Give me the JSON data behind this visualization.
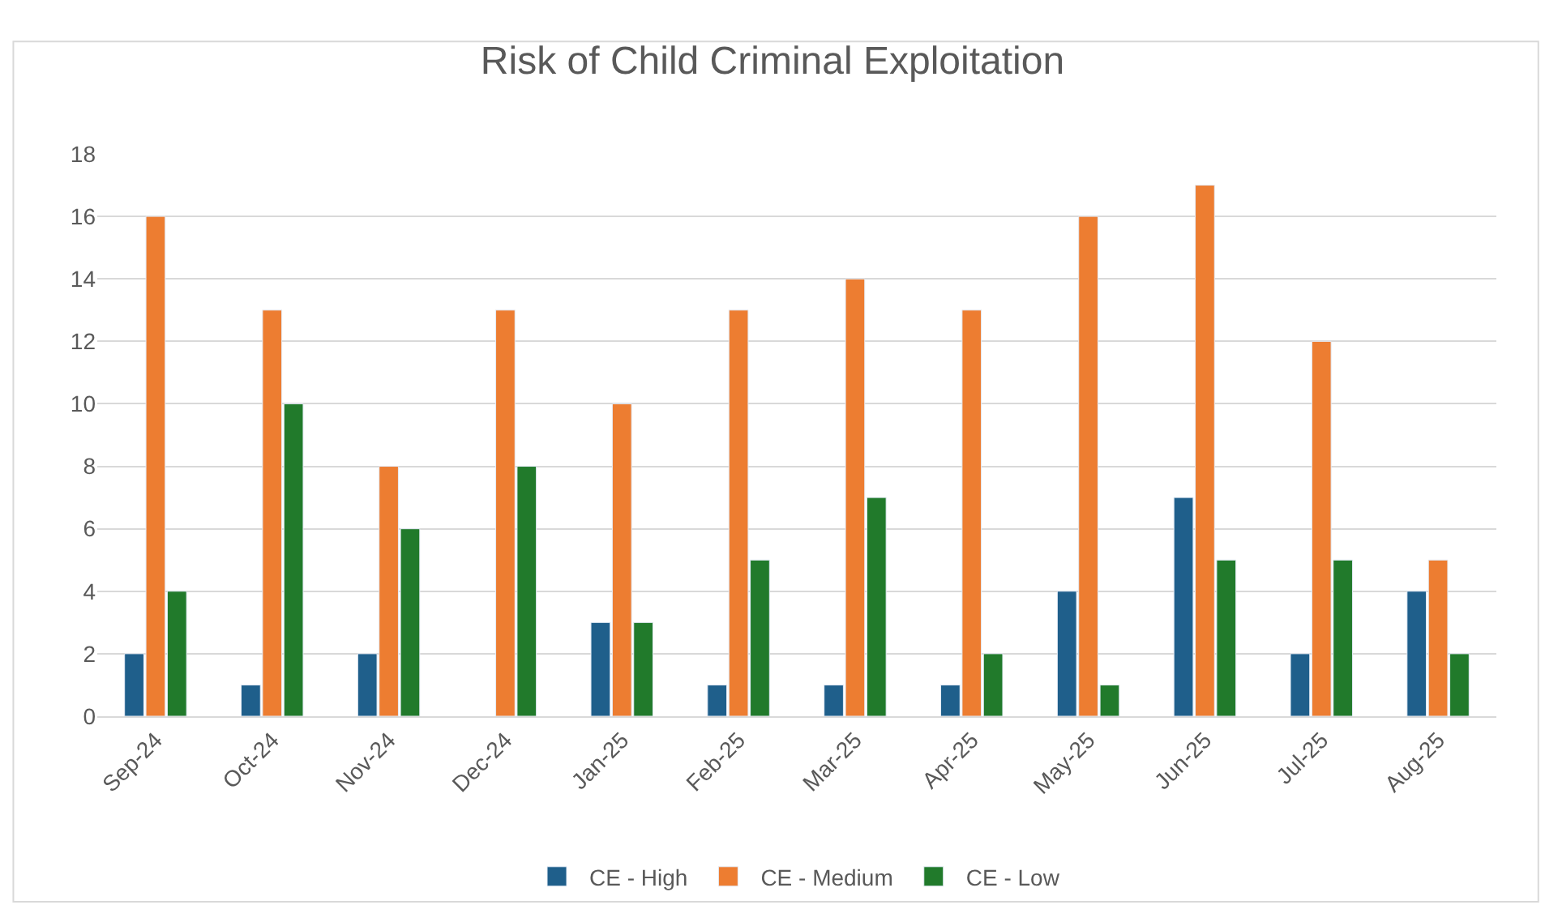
{
  "chart_data": {
    "type": "bar",
    "title": "Risk of Child Criminal Exploitation",
    "categories": [
      "Sep-24",
      "Oct-24",
      "Nov-24",
      "Dec-24",
      "Jan-25",
      "Feb-25",
      "Mar-25",
      "Apr-25",
      "May-25",
      "Jun-25",
      "Jul-25",
      "Aug-25"
    ],
    "series": [
      {
        "name": "CE - High",
        "color": "#1f5f8b",
        "values": [
          2,
          1,
          2,
          null,
          3,
          1,
          1,
          1,
          4,
          7,
          2,
          4
        ]
      },
      {
        "name": "CE - Medium",
        "color": "#ed7d31",
        "values": [
          16,
          13,
          8,
          13,
          10,
          13,
          14,
          13,
          16,
          17,
          12,
          5
        ]
      },
      {
        "name": "CE - Low",
        "color": "#217a2b",
        "values": [
          4,
          10,
          6,
          8,
          3,
          5,
          7,
          2,
          1,
          5,
          5,
          2
        ]
      }
    ],
    "ylim": [
      0,
      18
    ],
    "yticks": [
      0,
      2,
      4,
      6,
      8,
      10,
      12,
      14,
      16,
      18
    ],
    "grid": "y",
    "legend": "bottom"
  }
}
